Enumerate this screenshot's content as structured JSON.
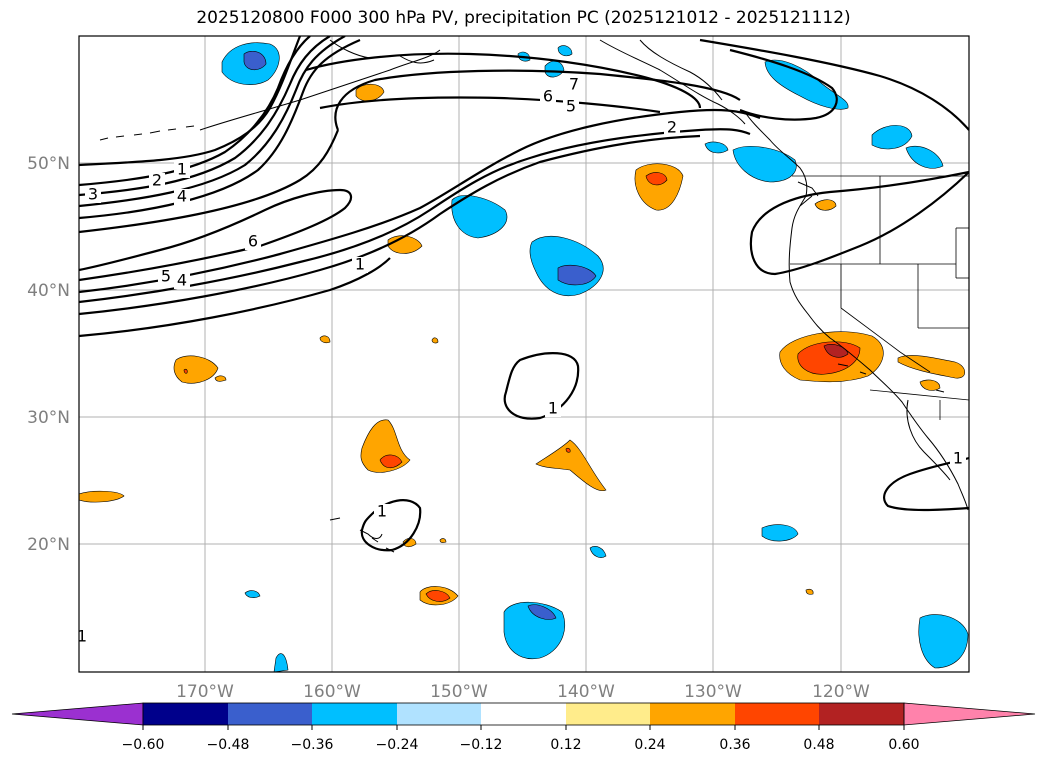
{
  "title": "2025120800 F000 300 hPa PV, precipitation PC (2025121012 - 2025121112)",
  "lat_ticks": [
    "50°N",
    "40°N",
    "30°N",
    "20°N"
  ],
  "lon_ticks": [
    "170°W",
    "160°W",
    "150°W",
    "140°W",
    "130°W",
    "120°W"
  ],
  "pv_contour_labels": [
    "1",
    "2",
    "3",
    "4",
    "5",
    "6",
    "7"
  ],
  "colorbar": {
    "tick_labels": [
      "−0.60",
      "−0.48",
      "−0.36",
      "−0.24",
      "−0.12",
      "0.12",
      "0.24",
      "0.36",
      "0.48",
      "0.60"
    ],
    "colors": [
      "#9b30d0",
      "#00008b",
      "#3a5fcd",
      "#00bfff",
      "#b0e2ff",
      "#ffffff",
      "#ffec8b",
      "#ffa500",
      "#ff4500",
      "#b22222",
      "#ff82ab"
    ]
  },
  "precip_colors": {
    "neg_light": "#00bfff",
    "neg_strong": "#3a5fcd",
    "pos_light": "#ffa500",
    "pos_strong": "#ff4500",
    "pos_max": "#b22222"
  }
}
